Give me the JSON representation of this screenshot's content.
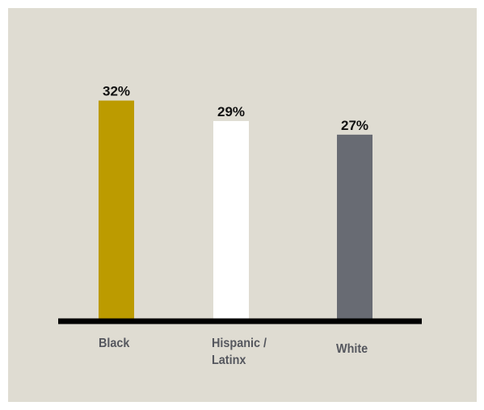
{
  "chart_data": {
    "type": "bar",
    "categories": [
      "Black",
      "Hispanic / Latinx",
      "White"
    ],
    "category_lines": [
      [
        "Black"
      ],
      [
        "Hispanic /",
        "Latinx"
      ],
      [
        "White"
      ]
    ],
    "values": [
      32,
      29,
      27
    ],
    "value_labels": [
      "32%",
      "29%",
      "27%"
    ],
    "bar_colors": [
      "#bc9b00",
      "#ffffff",
      "#686b73"
    ],
    "axis_color": "#000000",
    "background": "#dfdcd2",
    "title": "",
    "xlabel": "",
    "ylabel": "",
    "ylim": [
      0,
      35
    ],
    "grid": false,
    "legend": "none"
  }
}
